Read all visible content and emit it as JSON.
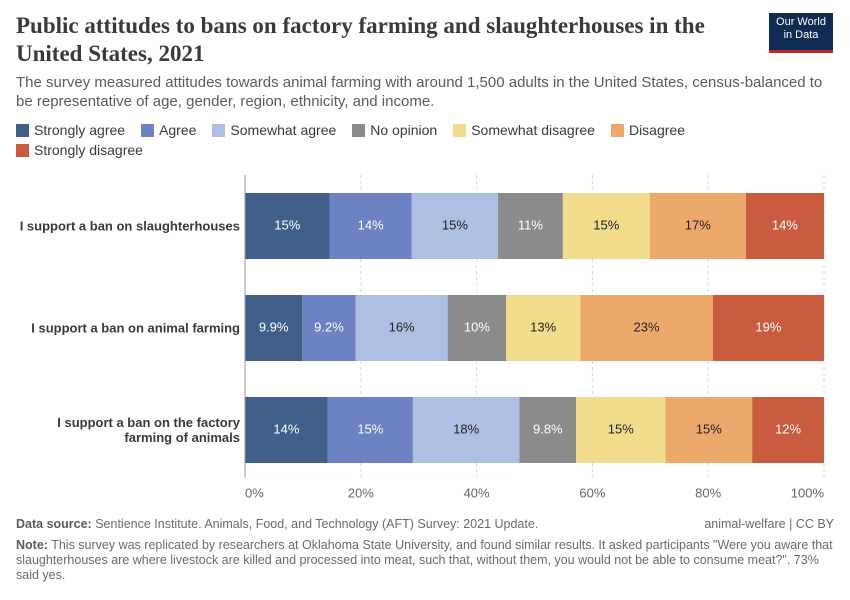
{
  "chart_data": {
    "type": "stacked_horizontal_bar",
    "title": "Public attitudes to bans on factory farming and slaughterhouses in the United States, 2021",
    "subtitle": "The survey measured attitudes towards animal farming with around 1,500 adults in the United States, census-balanced to be representative of age, gender, region, ethnicity, and income.",
    "logo": [
      "Our World",
      "in Data"
    ],
    "categories": [
      "I support a ban on slaughterhouses",
      "I support a ban on animal farming",
      "I support a ban on the factory farming of animals"
    ],
    "series": [
      {
        "name": "Strongly agree",
        "color": "#425f8a",
        "values": [
          14.6,
          9.9,
          14.3
        ],
        "value_labels": [
          "15%",
          "9.9%",
          "14%"
        ]
      },
      {
        "name": "Agree",
        "color": "#6c82c2",
        "values": [
          14.2,
          9.2,
          14.7
        ],
        "value_labels": [
          "14%",
          "9.2%",
          "15%"
        ]
      },
      {
        "name": "Somewhat agree",
        "color": "#adbfe2",
        "values": [
          14.9,
          15.9,
          18.4
        ],
        "value_labels": [
          "15%",
          "16%",
          "18%"
        ]
      },
      {
        "name": "No opinion",
        "color": "#8b8b8e",
        "values": [
          11.2,
          10.1,
          9.8
        ],
        "value_labels": [
          "11%",
          "10%",
          "9.8%"
        ]
      },
      {
        "name": "Somewhat disagree",
        "color": "#f1dd8c",
        "values": [
          15.0,
          12.8,
          15.4
        ],
        "value_labels": [
          "15%",
          "13%",
          "15%"
        ]
      },
      {
        "name": "Disagree",
        "color": "#eda96c",
        "values": [
          16.6,
          22.9,
          15.0
        ],
        "value_labels": [
          "17%",
          "23%",
          "15%"
        ]
      },
      {
        "name": "Strongly disagree",
        "color": "#c95b3f",
        "values": [
          13.5,
          19.2,
          12.4
        ],
        "value_labels": [
          "14%",
          "19%",
          "12%"
        ]
      }
    ],
    "xlim": [
      0,
      100
    ],
    "xticks": [
      {
        "value": 0,
        "label": "0%"
      },
      {
        "value": 20,
        "label": "20%"
      },
      {
        "value": 40,
        "label": "40%"
      },
      {
        "value": 60,
        "label": "60%"
      },
      {
        "value": 80,
        "label": "80%"
      },
      {
        "value": 100,
        "label": "100%"
      }
    ],
    "grid": true,
    "source_label": "Data source:",
    "source": "Sentience Institute. Animals, Food, and Technology (AFT) Survey: 2021 Update.",
    "license": "animal-welfare | CC BY",
    "note_label": "Note:",
    "note": "This survey was replicated by researchers at Oklahoma State University, and found similar results. It asked participants \"Were you aware that slaughterhouses are where livestock are killed and processed into meat, such that, without them, you would not be able to consume meat?\". 73% said yes."
  }
}
